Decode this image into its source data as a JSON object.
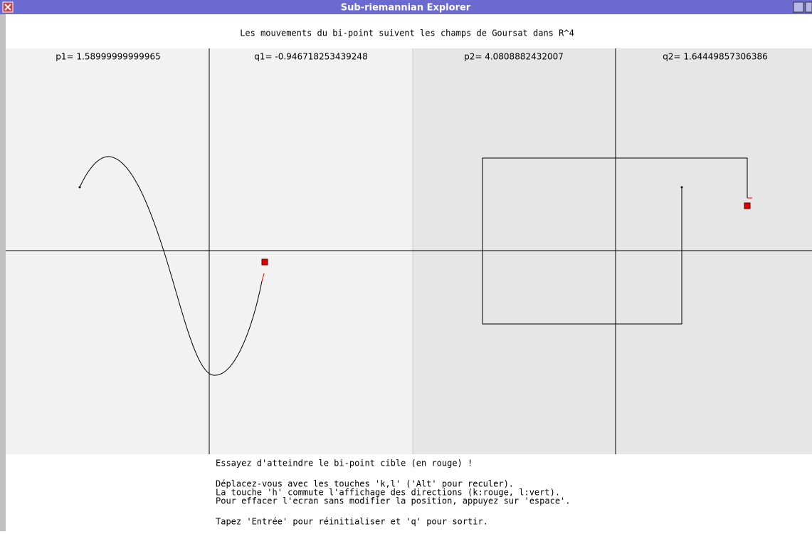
{
  "window": {
    "title": "Sub-riemannian Explorer"
  },
  "header": {
    "subtitle": "Les mouvements du bi-point suivent les champs de Goursat dans R^4"
  },
  "panels": {
    "left": {
      "p_label": "p1= 1.58999999999965",
      "q_label": "q1= -0.946718253439248"
    },
    "right": {
      "p_label": "p2= 4.0808882432007",
      "q_label": "q2= 1.64449857306386"
    }
  },
  "instructions": {
    "goal": "Essayez d'atteindre le bi-point cible (en rouge) !",
    "lines": [
      "Déplacez-vous avec les touches 'k,l' ('Alt' pour reculer).",
      "La touche 'h' commute l'affichage des directions (k:rouge, l:vert).",
      "Pour effacer l'ecran sans modifier la position, appuyez sur 'espace'."
    ],
    "footer": "Tapez 'Entrée' pour réinitialiser et 'q' pour sortir."
  }
}
